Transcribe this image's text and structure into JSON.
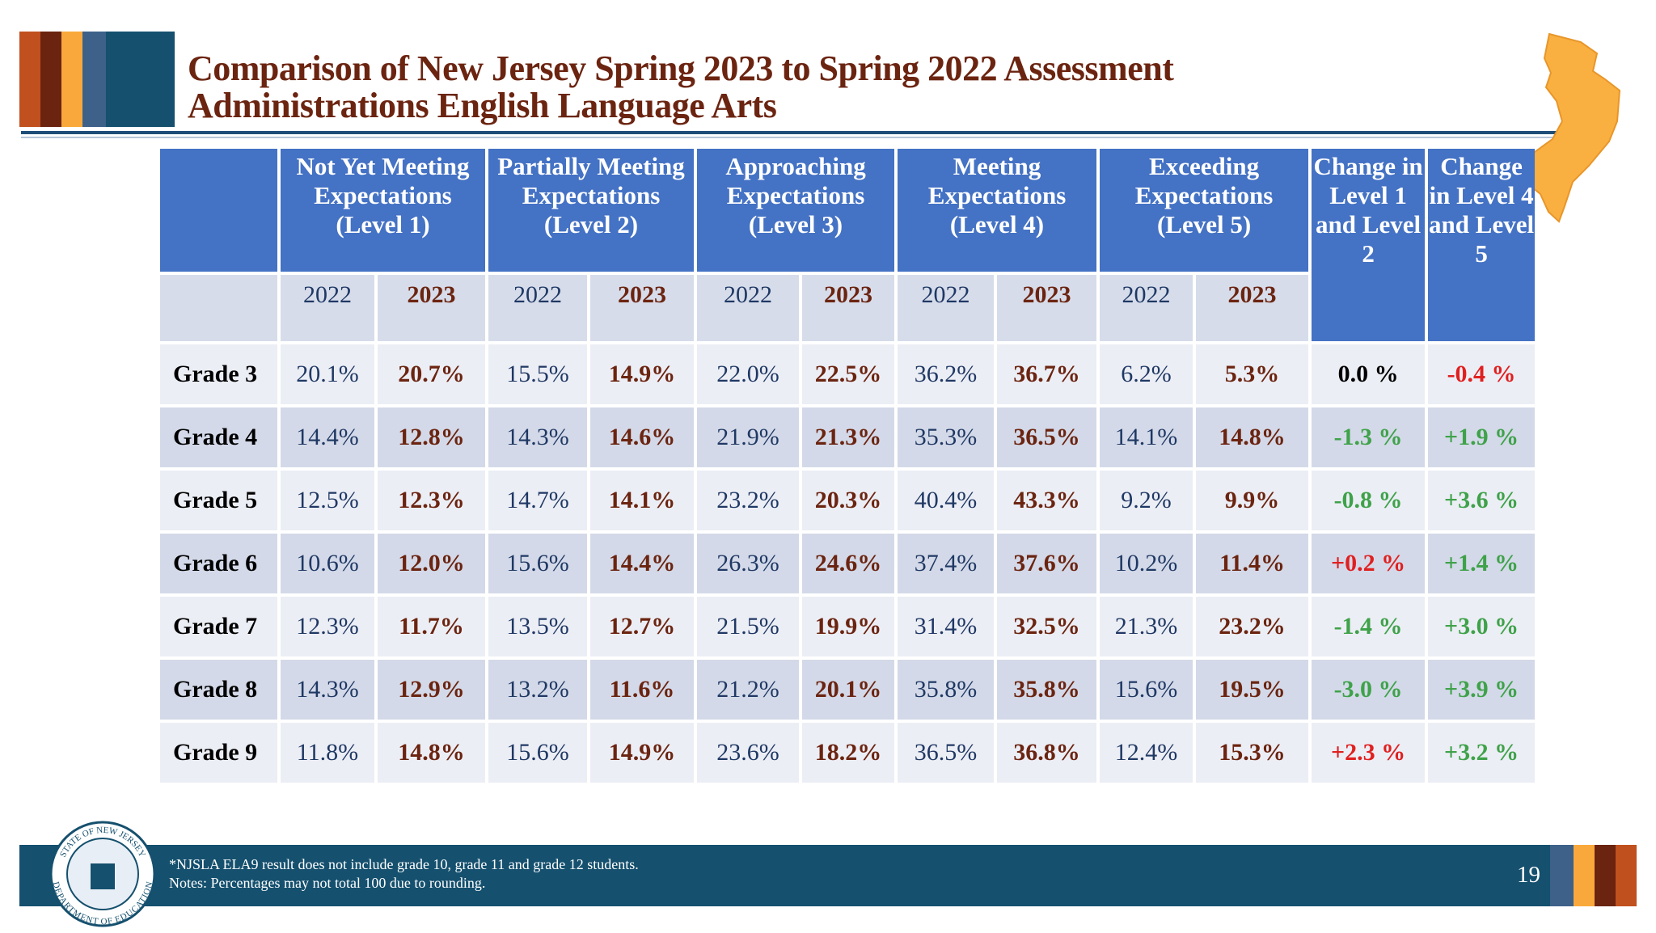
{
  "header": {
    "title_lines": [
      "Comparison of New Jersey Spring 2023 to Spring 2022 Assessment",
      "Administrations English Language Arts"
    ]
  },
  "table": {
    "group_headers": [
      "Not Yet Meeting Expectations (Level 1)",
      "Partially Meeting Expectations (Level 2)",
      "Approaching Expectations (Level 3)",
      "Meeting Expectations (Level 4)",
      "Exceeding Expectations (Level 5)"
    ],
    "change_headers": [
      "Change in Level 1 and Level 2",
      "Change in Level 4 and Level 5"
    ],
    "years": [
      "2022",
      "2023"
    ],
    "rows": [
      {
        "label": "Grade 3",
        "values": [
          "20.1%",
          "20.7%",
          "15.5%",
          "14.9%",
          "22.0%",
          "22.5%",
          "36.2%",
          "36.7%",
          "6.2%",
          "5.3%"
        ],
        "changes": [
          "0.0 %",
          "-0.4 %"
        ]
      },
      {
        "label": "Grade 4",
        "values": [
          "14.4%",
          "12.8%",
          "14.3%",
          "14.6%",
          "21.9%",
          "21.3%",
          "35.3%",
          "36.5%",
          "14.1%",
          "14.8%"
        ],
        "changes": [
          "-1.3 %",
          "+1.9 %"
        ]
      },
      {
        "label": "Grade 5",
        "values": [
          "12.5%",
          "12.3%",
          "14.7%",
          "14.1%",
          "23.2%",
          "20.3%",
          "40.4%",
          "43.3%",
          "9.2%",
          "9.9%"
        ],
        "changes": [
          "-0.8 %",
          "+3.6 %"
        ]
      },
      {
        "label": "Grade 6",
        "values": [
          "10.6%",
          "12.0%",
          "15.6%",
          "14.4%",
          "26.3%",
          "24.6%",
          "37.4%",
          "37.6%",
          "10.2%",
          "11.4%"
        ],
        "changes": [
          "+0.2 %",
          "+1.4 %"
        ]
      },
      {
        "label": "Grade 7",
        "values": [
          "12.3%",
          "11.7%",
          "13.5%",
          "12.7%",
          "21.5%",
          "19.9%",
          "31.4%",
          "32.5%",
          "21.3%",
          "23.2%"
        ],
        "changes": [
          "-1.4 %",
          "+3.0 %"
        ]
      },
      {
        "label": "Grade 8",
        "values": [
          "14.3%",
          "12.9%",
          "13.2%",
          "11.6%",
          "21.2%",
          "20.1%",
          "35.8%",
          "35.8%",
          "15.6%",
          "19.5%"
        ],
        "changes": [
          "-3.0 %",
          "+3.9 %"
        ]
      },
      {
        "label": "Grade 9",
        "values": [
          "11.8%",
          "14.8%",
          "15.6%",
          "14.9%",
          "23.6%",
          "18.2%",
          "36.5%",
          "36.8%",
          "12.4%",
          "15.3%"
        ],
        "changes": [
          "+2.3 %",
          "+3.2 %"
        ]
      }
    ]
  },
  "footer": {
    "notes": [
      "*NJSLA ELA9 result does not include grade 10, grade 11 and grade 12 students.",
      "Notes: Percentages may not total 100 due to rounding."
    ],
    "page": "19",
    "seal": {
      "top": "STATE OF NEW JERSEY",
      "bottom": "DEPARTMENT OF EDUCATION"
    }
  }
}
